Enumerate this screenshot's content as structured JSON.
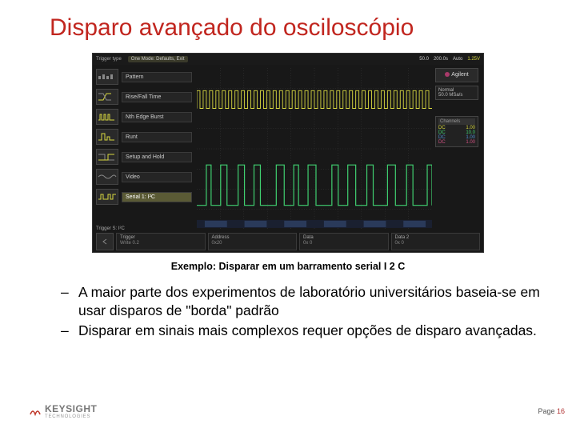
{
  "slide": {
    "title": "Disparo avançado do osciloscópio",
    "caption": "Exemplo: Disparar em um barramento serial I 2 C",
    "bullets": [
      "A maior parte dos experimentos de laboratório universitários baseia-se em usar disparos de \"borda\" padrão",
      "Disparar em sinais mais complexos requer opções de disparo avançadas."
    ],
    "dash": "–"
  },
  "scope": {
    "topbar": {
      "trigger_label": "Trigger type",
      "mode": "One Mode: Defaults, Exit",
      "scale": "50.0",
      "time": "200.0s",
      "auto": "Auto",
      "stat": "1.25V"
    },
    "logo": "Agilent",
    "mode_box": {
      "label": "Normal",
      "value": "50.0 MSa/s"
    },
    "channels": {
      "header": "Channels",
      "rows": [
        {
          "name": "DC",
          "val": "1.00",
          "color": "#d8d840"
        },
        {
          "name": "DC",
          "val": "10.0",
          "color": "#40d070"
        },
        {
          "name": "DC",
          "val": "1.00",
          "color": "#5090d0"
        },
        {
          "name": "DC",
          "val": "1.00",
          "color": "#d05080"
        }
      ]
    },
    "menu": [
      {
        "label": "Pattern",
        "glyph": "pattern"
      },
      {
        "label": "Rise/Fall Time",
        "glyph": "risefall"
      },
      {
        "label": "Nth Edge Burst",
        "glyph": "burst"
      },
      {
        "label": "Runt",
        "glyph": "runt"
      },
      {
        "label": "Setup and Hold",
        "glyph": "setup"
      },
      {
        "label": "Video",
        "glyph": "video"
      },
      {
        "label": "Serial 1: I²C",
        "glyph": "serial",
        "selected": true
      }
    ],
    "bottom": [
      {
        "t1": "Trigger",
        "t2": "Write 0.2"
      },
      {
        "t1": "Address",
        "t2": "0x20"
      },
      {
        "t1": "Data",
        "t2": "0x 0"
      },
      {
        "t1": "Data 2",
        "t2": "0x 0"
      }
    ],
    "trig_label": "Trigger S: I²C",
    "waveforms": {
      "grid_cols": 10,
      "grid_rows": 8,
      "series": [
        {
          "color": "#d8d840",
          "top": 28,
          "amp": 22,
          "type": "clock"
        },
        {
          "color": "#40d070",
          "top": 120,
          "amp": 50,
          "type": "data"
        }
      ]
    }
  },
  "footer": {
    "brand": "KEYSIGHT",
    "sub": "TECHNOLOGIES",
    "page_label": "Page",
    "page_num": "16"
  },
  "colors": {
    "title": "#c1261f",
    "scope_bg": "#181818",
    "yellow": "#d8d840",
    "green": "#40d070",
    "grid": "#3a3a3a"
  }
}
